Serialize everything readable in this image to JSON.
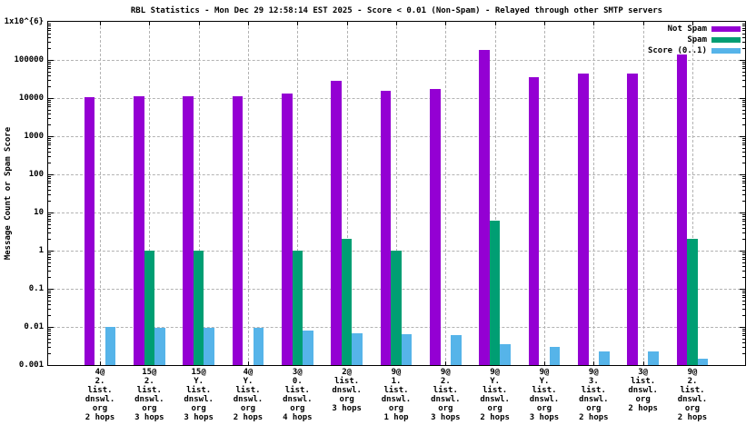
{
  "chart_data": {
    "type": "bar",
    "title": "RBL Statistics - Mon Dec 29 12:58:14 EST 2025 - Score < 0.01 (Non-Spam) - Relayed through other SMTP servers",
    "ylabel": "Message Count or Spam Score",
    "xlabel": "",
    "yscale": "log",
    "ylim": [
      0.001,
      1000000
    ],
    "grid": true,
    "legend_position": "top-right-inside",
    "y_tick_labels": [
      "1x10^{6}",
      "100000",
      "10000",
      "1000",
      "100",
      "10",
      "1",
      "0.1",
      "0.01",
      "0.001"
    ],
    "categories": [
      [
        "4@",
        "2.",
        "list.",
        "dnswl.",
        "org",
        "2 hops"
      ],
      [
        "15@",
        "2.",
        "list.",
        "dnswl.",
        "org",
        "3 hops"
      ],
      [
        "15@",
        "Y.",
        "list.",
        "dnswl.",
        "org",
        "3 hops"
      ],
      [
        "4@",
        "Y.",
        "list.",
        "dnswl.",
        "org",
        "2 hops"
      ],
      [
        "3@",
        "0.",
        "list.",
        "dnswl.",
        "org",
        "4 hops"
      ],
      [
        "2@",
        "list.",
        "dnswl.",
        "org",
        "3 hops"
      ],
      [
        "9@",
        "1.",
        "list.",
        "dnswl.",
        "org",
        "1 hop"
      ],
      [
        "9@",
        "2.",
        "list.",
        "dnswl.",
        "org",
        "3 hops"
      ],
      [
        "9@",
        "Y.",
        "list.",
        "dnswl.",
        "org",
        "2 hops"
      ],
      [
        "9@",
        "Y.",
        "list.",
        "dnswl.",
        "org",
        "3 hops"
      ],
      [
        "9@",
        "3.",
        "list.",
        "dnswl.",
        "org",
        "2 hops"
      ],
      [
        "3@",
        "list.",
        "dnswl.",
        "org",
        "2 hops"
      ],
      [
        "9@",
        "2.",
        "list.",
        "dnswl.",
        "org",
        "2 hops"
      ]
    ],
    "series": [
      {
        "name": "Not Spam",
        "color": "#9400d3",
        "values": [
          10600,
          11300,
          11300,
          11300,
          13500,
          29000,
          15200,
          17300,
          183000,
          36000,
          44000,
          44000,
          137000
        ]
      },
      {
        "name": "Spam",
        "color": "#009e73",
        "values": [
          null,
          1,
          1,
          null,
          1,
          2,
          1,
          null,
          6,
          null,
          null,
          null,
          2
        ]
      },
      {
        "name": "Score (0..1)",
        "color": "#56b4e9",
        "values": [
          0.01,
          0.0095,
          0.0095,
          0.0095,
          0.008,
          0.007,
          0.0065,
          0.006,
          0.0035,
          0.003,
          0.0023,
          0.0023,
          0.0015
        ]
      }
    ]
  }
}
